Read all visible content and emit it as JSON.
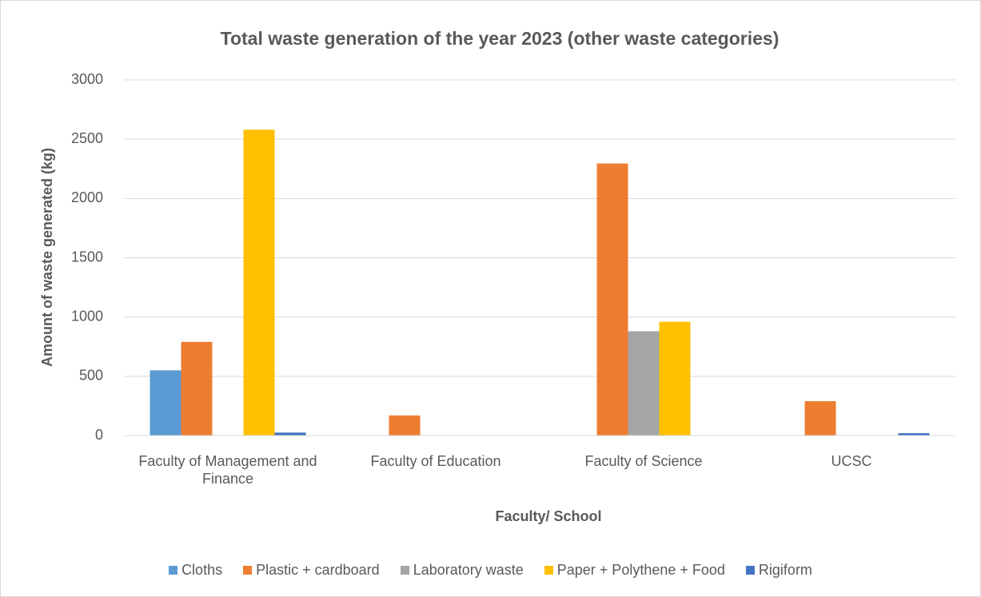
{
  "chart_data": {
    "type": "bar",
    "title": "Total waste generation of the year 2023 (other waste categories)",
    "x_label": "Faculty/ School",
    "y_label": "Amount of waste generated (kg)",
    "categories": [
      "Faculty of Management and Finance",
      "Faculty of Education",
      "Faculty of Science",
      "UCSC"
    ],
    "series": [
      {
        "name": "Cloths",
        "color": "#5b9bd5",
        "values": [
          550,
          0,
          0,
          0
        ]
      },
      {
        "name": "Plastic + cardboard",
        "color": "#ed7d31",
        "values": [
          790,
          170,
          2295,
          290
        ]
      },
      {
        "name": "Laboratory waste",
        "color": "#a5a5a5",
        "values": [
          0,
          0,
          880,
          0
        ]
      },
      {
        "name": "Paper + Polythene + Food",
        "color": "#ffc000",
        "values": [
          2580,
          0,
          960,
          0
        ]
      },
      {
        "name": "Rigiform",
        "color": "#4472c4",
        "values": [
          25,
          0,
          0,
          20
        ]
      }
    ],
    "ylim": [
      0,
      3000
    ],
    "yticks": [
      0,
      500,
      1000,
      1500,
      2000,
      2500,
      3000
    ],
    "grid": true,
    "legend": "bottom"
  }
}
